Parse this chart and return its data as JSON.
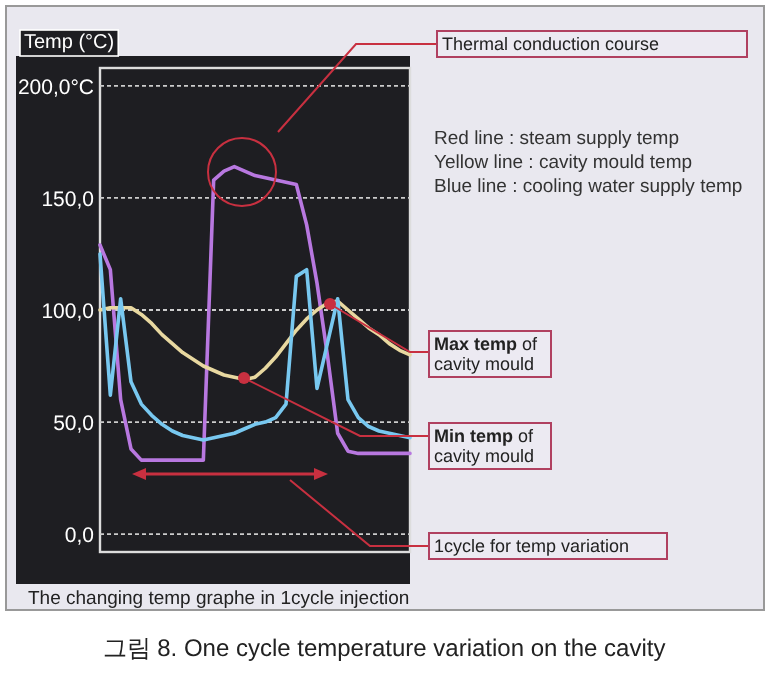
{
  "chart_data": {
    "type": "line",
    "title": "그림 8. One cycle temperature variation on the cavity",
    "xlabel": "The changing temp graphe in 1cycle injection",
    "ylabel": "Temp (°C)",
    "categories": [
      null,
      null,
      null,
      null,
      null,
      null,
      null,
      null,
      null,
      null,
      null,
      null,
      null,
      null,
      null,
      null,
      null,
      null,
      null,
      null,
      null,
      null,
      null,
      null,
      null,
      null,
      null,
      null,
      null,
      null,
      null
    ],
    "series": [
      {
        "color": "#b878e0",
        "values": [
          129,
          118,
          60,
          38,
          33,
          33,
          33,
          33,
          33,
          33,
          33,
          158,
          162,
          164,
          162,
          160,
          159,
          158,
          157,
          156,
          138,
          112,
          80,
          45,
          37,
          36,
          36,
          36,
          36,
          36,
          36
        ]
      },
      {
        "color": "#e8d8a0",
        "values": [
          100,
          101,
          101,
          101,
          98,
          94,
          89,
          85,
          81,
          78,
          75,
          73,
          71,
          70,
          69,
          70,
          74,
          79,
          85,
          91,
          96,
          100,
          103,
          104,
          100,
          96,
          92,
          89,
          85,
          82,
          80
        ]
      },
      {
        "color": "#78c8f0",
        "values": [
          125,
          62,
          105,
          68,
          58,
          53,
          49,
          46,
          44,
          43,
          42,
          43,
          44,
          45,
          47,
          49,
          50,
          52,
          58,
          115,
          118,
          65,
          85,
          105,
          60,
          52,
          48,
          46,
          45,
          44,
          43
        ]
      }
    ],
    "ylim": [
      -8,
      208
    ],
    "yticks": [
      {
        "value": 0,
        "label": "0,0"
      },
      {
        "value": 50,
        "label": "50,0"
      },
      {
        "value": 100,
        "label": "100,0"
      },
      {
        "value": 150,
        "label": "150,0"
      },
      {
        "value": 200,
        "label": "200,0°C"
      }
    ],
    "grid": "y",
    "annotations": [
      "Thermal conduction course",
      "Red line : steam supply temp",
      "Yellow line : cavity mould temp",
      "Blue line : cooling water supply temp",
      "**Max temp** of cavity mould",
      "**Min temp** of cavity mould",
      "1cycle for temp variation"
    ]
  }
}
